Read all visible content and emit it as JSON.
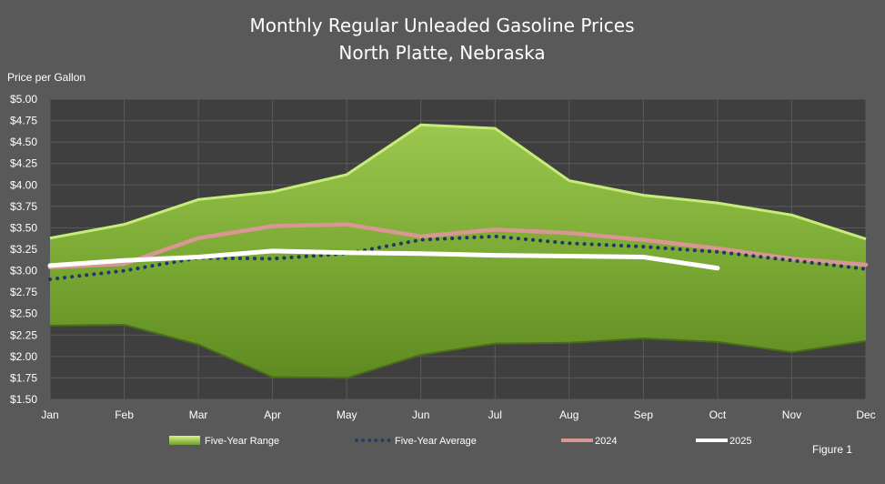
{
  "chart_data": {
    "type": "area",
    "title": "Monthly Regular Unleaded Gasoline Prices",
    "subtitle": "North Platte, Nebraska",
    "ylabel": "Price per Gallon",
    "ylim": [
      1.5,
      5.0
    ],
    "ytick_step": 0.25,
    "categories": [
      "Jan",
      "Feb",
      "Mar",
      "Apr",
      "May",
      "Jun",
      "Jul",
      "Aug",
      "Sep",
      "Oct",
      "Nov",
      "Dec"
    ],
    "grid": true,
    "legend_position": "bottom",
    "range": {
      "name": "Five-Year Range",
      "high": [
        3.38,
        3.54,
        3.83,
        3.92,
        4.12,
        4.7,
        4.66,
        4.05,
        3.88,
        3.79,
        3.65,
        3.37
      ],
      "low": [
        2.36,
        2.37,
        2.14,
        1.76,
        1.75,
        2.02,
        2.15,
        2.16,
        2.21,
        2.17,
        2.05,
        2.18
      ],
      "color": "#82b23c"
    },
    "series": [
      {
        "name": "Five-Year Average",
        "style": "dotted",
        "color": "#1f3864",
        "values": [
          2.9,
          3.0,
          3.15,
          3.14,
          3.2,
          3.36,
          3.4,
          3.32,
          3.28,
          3.22,
          3.12,
          3.02
        ]
      },
      {
        "name": "2024",
        "style": "solid",
        "color": "#d99694",
        "values": [
          3.04,
          3.08,
          3.38,
          3.52,
          3.54,
          3.4,
          3.48,
          3.44,
          3.36,
          3.26,
          3.14,
          3.07
        ]
      },
      {
        "name": "2025",
        "style": "solid",
        "color": "#ffffff",
        "values": [
          3.06,
          3.12,
          3.16,
          3.23,
          3.21,
          3.2,
          3.18,
          3.17,
          3.16,
          3.03,
          null,
          null
        ]
      }
    ]
  },
  "figure_label": "Figure 1"
}
